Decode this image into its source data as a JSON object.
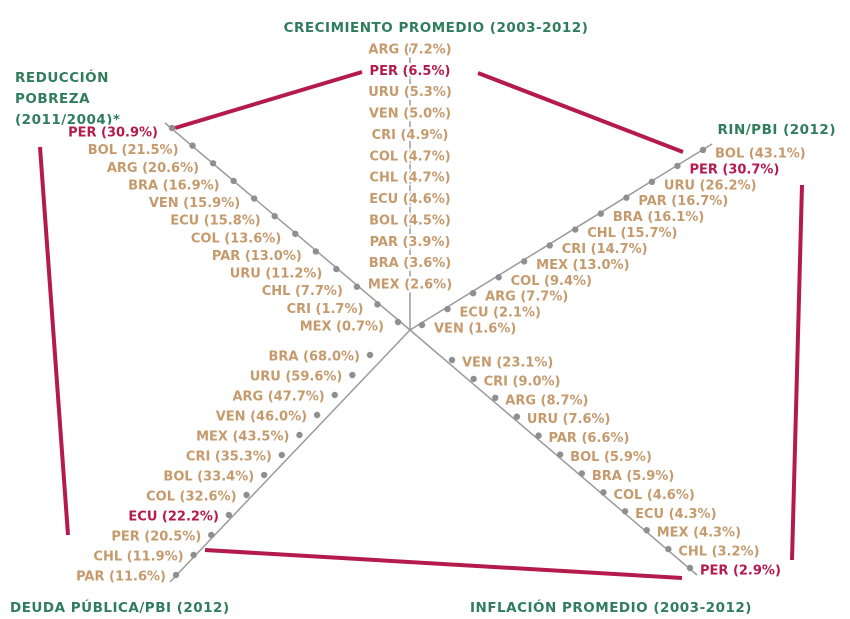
{
  "axes": [
    {
      "title": [
        "CRECIMIENTO PROMEDIO (2003-2012)"
      ],
      "highlight": 1,
      "items": [
        "ARG (7.2%)",
        "PER (6.5%)",
        "URU (5.3%)",
        "VEN (5.0%)",
        "CRI (4.9%)",
        "COL (4.7%)",
        "CHL (4.7%)",
        "ECU (4.6%)",
        "BOL (4.5%)",
        "PAR (3.9%)",
        "BRA (3.6%)",
        "MEX (2.6%)"
      ]
    },
    {
      "title": [
        "RIN/PBI (2012)"
      ],
      "highlight": 1,
      "items": [
        "BOL (43.1%)",
        "PER (30.7%)",
        "URU (26.2%)",
        "PAR (16.7%)",
        "BRA (16.1%)",
        "CHL (15.7%)",
        "CRI (14.7%)",
        "MEX (13.0%)",
        "COL (9.4%)",
        "ARG (7.7%)",
        "ECU (2.1%)",
        "VEN (1.6%)"
      ]
    },
    {
      "title": [
        "INFLACIÓN PROMEDIO (2003-2012)"
      ],
      "highlight": 11,
      "items": [
        "VEN (23.1%)",
        "CRI (9.0%)",
        "ARG (8.7%)",
        "URU (7.6%)",
        "PAR (6.6%)",
        "BOL (5.9%)",
        "BRA (5.9%)",
        "COL (4.6%)",
        "ECU (4.3%)",
        "MEX (4.3%)",
        "CHL (3.2%)",
        "PER (2.9%)"
      ]
    },
    {
      "title": [
        "DEUDA PÚBLICA/PBI (2012)"
      ],
      "highlight": 8,
      "items": [
        "BRA (68.0%)",
        "URU (59.6%)",
        "ARG (47.7%)",
        "VEN (46.0%)",
        "MEX (43.5%)",
        "CRI (35.3%)",
        "BOL (33.4%)",
        "COL (32.6%)",
        "ECU (22.2%)",
        "PER (20.5%)",
        "CHL (11.9%)",
        "PAR (11.6%)"
      ]
    },
    {
      "title": [
        "REDUCCIÓN",
        "POBREZA",
        "(2011/2004)*"
      ],
      "highlight": 0,
      "items": [
        "PER (30.9%)",
        "BOL (21.5%)",
        "ARG (20.6%)",
        "BRA (16.9%)",
        "VEN (15.9%)",
        "ECU (15.8%)",
        "COL (13.6%)",
        "PAR (13.0%)",
        "URU (11.2%)",
        "CHL (7.7%)",
        "CRI (1.7%)",
        "MEX (0.7%)"
      ]
    }
  ]
}
